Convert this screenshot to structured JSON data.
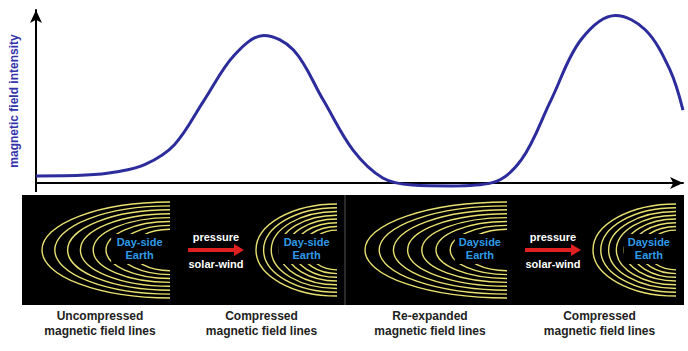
{
  "chart_data": {
    "type": "line",
    "y_label": "magnetic field intensity",
    "x": [
      0,
      7.7,
      12.3,
      16.8,
      21.4,
      26,
      30.6,
      35.2,
      39.8,
      44.4,
      49,
      53.6,
      58.2,
      64.3,
      70.4,
      75,
      79.6,
      84.2,
      89.6,
      94.2,
      98,
      100
    ],
    "values": [
      0.38,
      0.43,
      0.6,
      1.0,
      2.1,
      4.55,
      7.0,
      8.1,
      7.3,
      4.55,
      1.8,
      0.27,
      -0.12,
      -0.17,
      0,
      1.26,
      4.55,
      7.85,
      9.2,
      8.4,
      6.2,
      4.0
    ],
    "color": "#2c2c9c",
    "xlim": [
      0,
      100
    ],
    "ylim": [
      -0.5,
      9.5
    ],
    "grid": false,
    "tick_labels": false
  },
  "panels": [
    {
      "caption": "Uncompressed magnetic field lines",
      "earth_label": "Day-side Earth"
    },
    {
      "caption": "Compressed magnetic field lines",
      "earth_label": "Day-side Earth",
      "arrow": {
        "top": "pressure",
        "bottom": "solar-wind"
      }
    },
    {
      "caption": "Re-expanded magnetic field lines",
      "earth_label": "Dayside Earth"
    },
    {
      "caption": "Compressed magnetic field lines",
      "earth_label": "Dayside Earth",
      "arrow": {
        "top": "pressure",
        "bottom": "solar-wind"
      }
    }
  ]
}
